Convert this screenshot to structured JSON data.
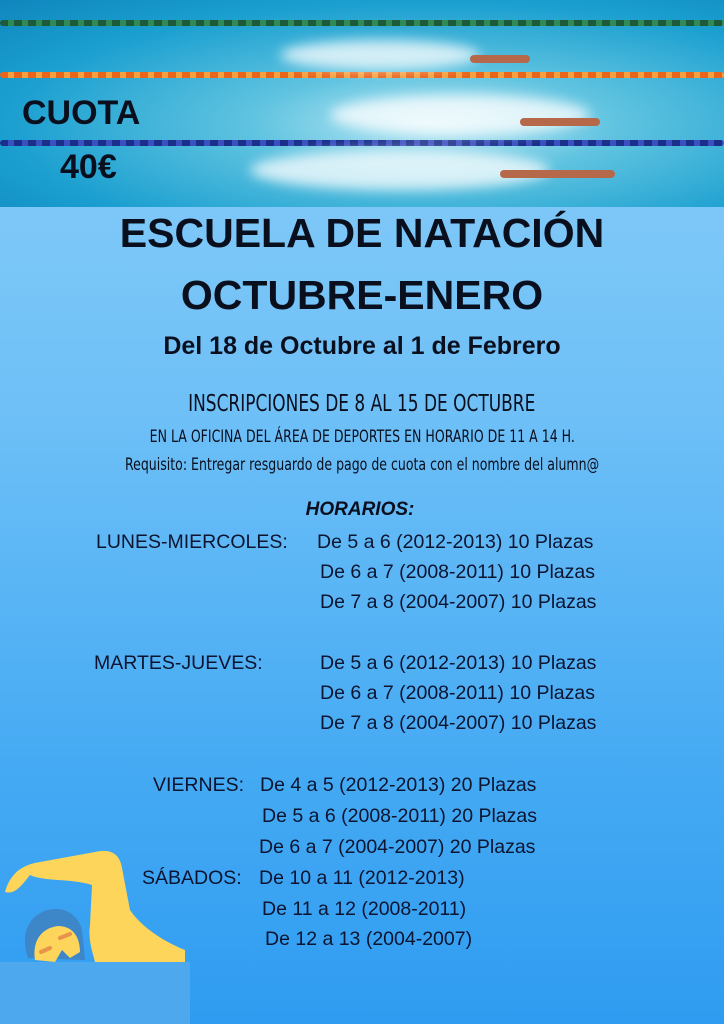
{
  "fee": {
    "label": "CUOTA",
    "amount": "40€"
  },
  "title": "ESCUELA DE NATACIÓN",
  "subtitle": "OCTUBRE-ENERO",
  "dates": "Del 18 de Octubre al 1 de Febrero",
  "registration": {
    "line1": "INSCRIPCIONES DE 8 AL 15 DE OCTUBRE",
    "line2": "EN LA OFICINA DEL ÁREA DE DEPORTES EN HORARIO DE 11 A 14 H.",
    "requirement": "Requisito: Entregar resguardo de pago de cuota con el nombre del alumn@"
  },
  "schedule": {
    "heading": "HORARIOS:",
    "groups": [
      {
        "days": "LUNES-MIERCOLES:",
        "slots": [
          "De 5 a 6 (2012-2013) 10 Plazas",
          "De 6 a 7 (2008-2011) 10 Plazas",
          "De 7 a 8 (2004-2007) 10 Plazas"
        ]
      },
      {
        "days": "MARTES-JUEVES:",
        "slots": [
          "De 5 a 6 (2012-2013) 10 Plazas",
          "De 6 a 7 (2008-2011) 10 Plazas",
          "De 7 a 8 (2004-2007) 10 Plazas"
        ]
      },
      {
        "days": "VIERNES:",
        "slots": [
          "De 4 a 5 (2012-2013) 20 Plazas",
          "De 5 a 6 (2008-2011) 20 Plazas",
          "De 6 a 7 (2004-2007) 20 Plazas"
        ]
      },
      {
        "days": "SÁBADOS:",
        "slots": [
          "De 10 a 11 (2012-2013)",
          "De 11 a 12 (2008-2011)",
          "De 12 a 13 (2004-2007)"
        ]
      }
    ]
  },
  "colors": {
    "text": "#0a0f1e",
    "background_top": "#8dcff8",
    "background_bottom": "#2f9cf1",
    "swimmer_icon": "#fcd55a"
  }
}
